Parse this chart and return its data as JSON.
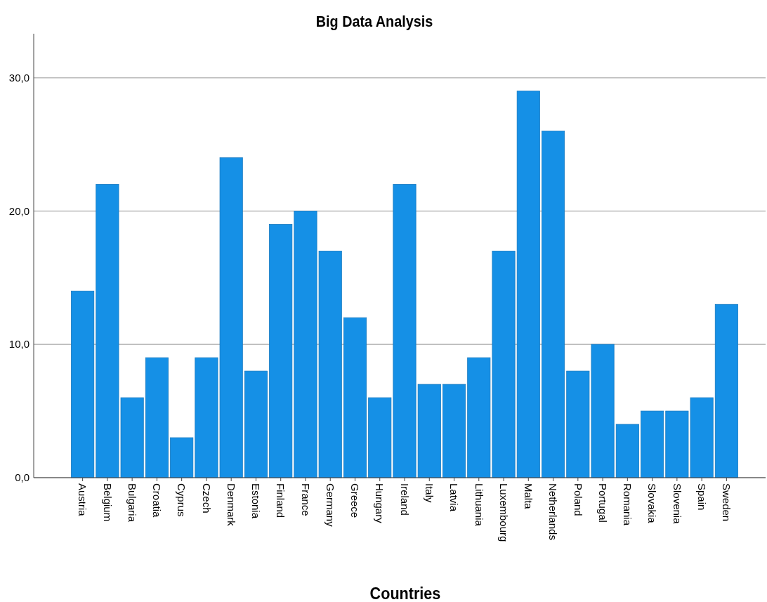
{
  "chart_data": {
    "type": "bar",
    "title": "Big Data Analysis",
    "xlabel": "Countries",
    "categories": [
      "Austria",
      "Belgium",
      "Bulgaria",
      "Croatia",
      "Cyprus",
      "Czech",
      "Denmark",
      "Estonia",
      "Finland",
      "France",
      "Germany",
      "Greece",
      "Hungary",
      "Ireland",
      "Italy",
      "Latvia",
      "Lithuania",
      "Luxembourg",
      "Malta",
      "Netherlands",
      "Poland",
      "Portugal",
      "Romania",
      "Slovakia",
      "Slovenia",
      "Spain",
      "Sweden"
    ],
    "values": [
      14,
      22,
      6,
      9,
      3,
      9,
      24,
      8,
      19,
      20,
      17,
      12,
      6,
      22,
      7,
      7,
      9,
      17,
      29,
      26,
      8,
      10,
      4,
      5,
      5,
      6,
      13
    ],
    "color": "#1590e6",
    "ylim": [
      0,
      33.3
    ],
    "yticks": [
      {
        "value": 0,
        "label": "0,0"
      },
      {
        "value": 10,
        "label": "10,0"
      },
      {
        "value": 20,
        "label": "20,0"
      },
      {
        "value": 30,
        "label": "30,0"
      }
    ],
    "grid": "y"
  }
}
